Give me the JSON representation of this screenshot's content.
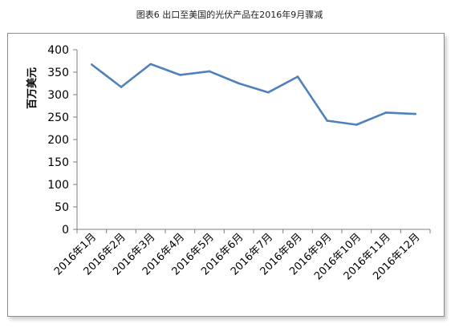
{
  "title": "图表6  出口至美国的光伏产品在2016年9月骤减",
  "chart_data": {
    "type": "line",
    "title": "图表6  出口至美国的光伏产品在2016年9月骤减",
    "xlabel": "",
    "ylabel": "百万美元",
    "categories": [
      "2016年1月",
      "2016年2月",
      "2016年3月",
      "2016年4月",
      "2016年5月",
      "2016年6月",
      "2016年7月",
      "2016年8月",
      "2016年9月",
      "2016年10月",
      "2016年11月",
      "2016年12月"
    ],
    "series": [
      {
        "values": [
          367,
          317,
          368,
          344,
          352,
          325,
          305,
          340,
          242,
          233,
          260,
          257
        ],
        "color": "#4f81bd"
      }
    ],
    "ylim": [
      0,
      400
    ],
    "yticks": [
      0,
      50,
      100,
      150,
      200,
      250,
      300,
      350,
      400
    ],
    "grid": false,
    "legend": "none"
  }
}
